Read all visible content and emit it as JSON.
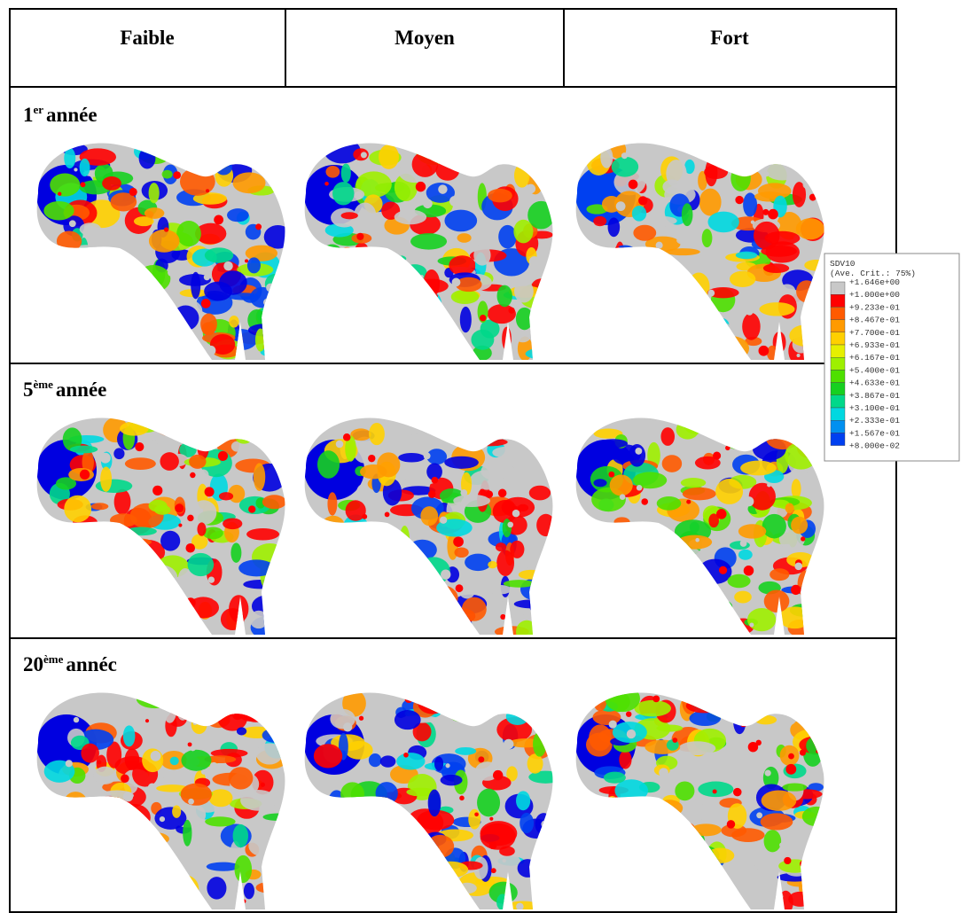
{
  "header": {
    "columns": [
      "Faible",
      "Moyen",
      "Fort"
    ]
  },
  "rows": [
    {
      "number": "1",
      "sup": "er",
      "label": "année"
    },
    {
      "number": "5",
      "sup": "ème",
      "label": "année"
    },
    {
      "number": "20",
      "sup": "ème",
      "label": "annéc"
    }
  ],
  "legend": {
    "title": "SDV10",
    "subtitle": "(Ave. Crit.: 75%)",
    "values": [
      "+1.646e+00",
      "+1.000e+00",
      "+9.233e-01",
      "+8.467e-01",
      "+7.700e-01",
      "+6.933e-01",
      "+6.167e-01",
      "+5.400e-01",
      "+4.633e-01",
      "+3.867e-01",
      "+3.100e-01",
      "+2.333e-01",
      "+1.567e-01",
      "+8.000e-02"
    ]
  }
}
